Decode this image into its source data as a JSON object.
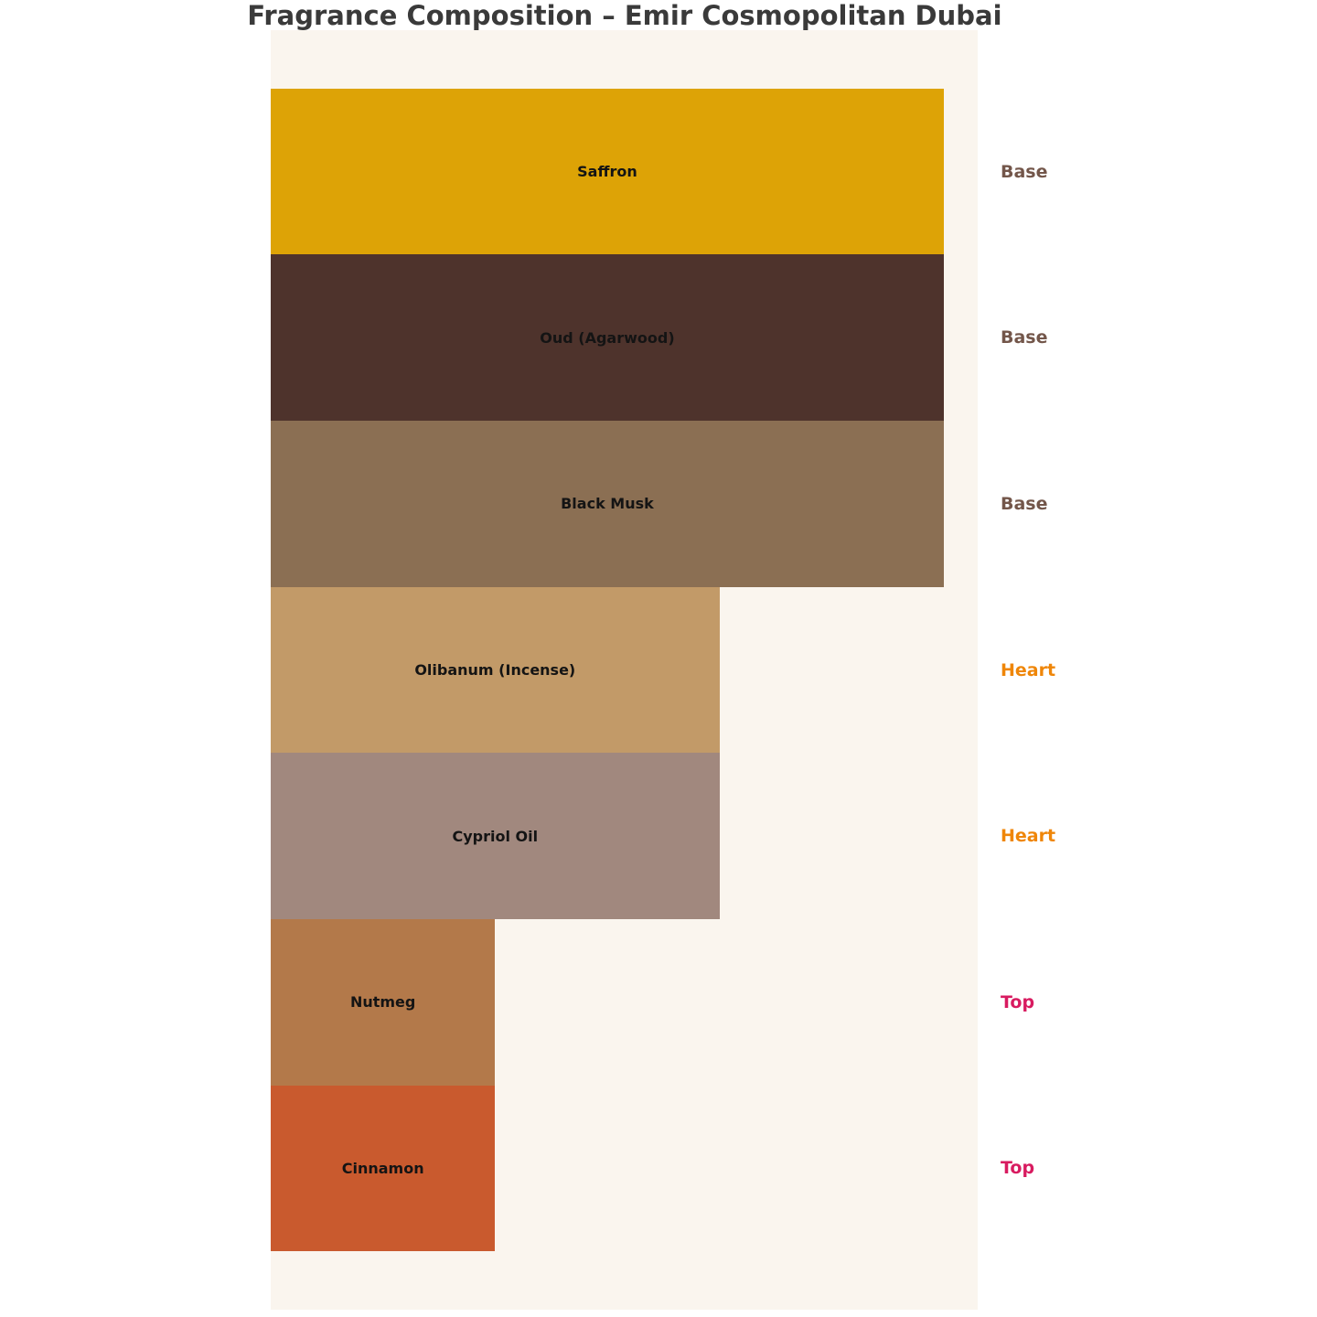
{
  "chart_data": {
    "type": "bar",
    "orientation": "horizontal",
    "title": "Fragrance Composition – Emir Cosmopolitan Dubai",
    "categories": [
      "Saffron",
      "Oud (Agarwood)",
      "Black Musk",
      "Olibanum (Incense)",
      "Cypriol Oil",
      "Nutmeg",
      "Cinnamon"
    ],
    "values": [
      3,
      3,
      3,
      2,
      2,
      1,
      1
    ],
    "x_range": [
      0,
      3.15
    ],
    "grid": false,
    "legend_position": "right-of-each-bar",
    "items": [
      {
        "label": "Saffron",
        "note_type": "Base",
        "relative_width": 3,
        "color": "#dda306"
      },
      {
        "label": "Oud (Agarwood)",
        "note_type": "Base",
        "relative_width": 3,
        "color": "#4e332c"
      },
      {
        "label": "Black Musk",
        "note_type": "Base",
        "relative_width": 3,
        "color": "#8b6f53"
      },
      {
        "label": "Olibanum (Incense)",
        "note_type": "Heart",
        "relative_width": 2,
        "color": "#c29a68"
      },
      {
        "label": "Cypriol Oil",
        "note_type": "Heart",
        "relative_width": 2,
        "color": "#a1887e"
      },
      {
        "label": "Nutmeg",
        "note_type": "Top",
        "relative_width": 1,
        "color": "#b3794a"
      },
      {
        "label": "Cinnamon",
        "note_type": "Top",
        "relative_width": 1,
        "color": "#c95a2e"
      }
    ],
    "note_type_colors": {
      "Base": "#73564a",
      "Heart": "#ef8609",
      "Top": "#d81b60"
    },
    "colors": {
      "title_text": "#3a3a3a",
      "bar_label_text": "#141414",
      "plot_background": "#faf5ee",
      "page_background": "#ffffff"
    }
  }
}
